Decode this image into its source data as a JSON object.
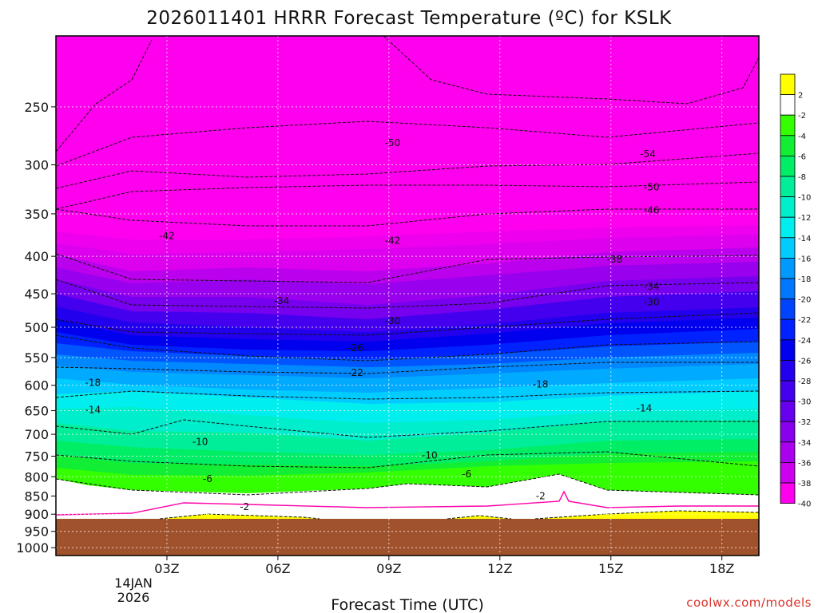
{
  "chart_data": {
    "type": "heatmap",
    "title": "2026011401 HRRR Forecast Temperature (ºC) for KSLK",
    "xlabel": "Forecast Time (UTC)",
    "ylabel": "",
    "x_ticks": [
      "03Z",
      "06Z",
      "09Z",
      "12Z",
      "15Z",
      "18Z"
    ],
    "x_hours": [
      3,
      6,
      9,
      12,
      15,
      18
    ],
    "x_range": [
      0,
      19
    ],
    "date_label": [
      "14JAN",
      "2026"
    ],
    "y_scale": "log-pressure",
    "y_ticks": [
      250,
      300,
      350,
      400,
      450,
      500,
      550,
      600,
      650,
      700,
      750,
      800,
      850,
      900,
      950,
      1000
    ],
    "y_range": [
      200,
      1025
    ],
    "ground_level_hPa": 945,
    "colorbar": {
      "labels": [
        "2",
        "-2",
        "-4",
        "-6",
        "-8",
        "-10",
        "-12",
        "-14",
        "-16",
        "-18",
        "-20",
        "-22",
        "-24",
        "-26",
        "-28",
        "-30",
        "-32",
        "-34",
        "-36",
        "-38",
        "-40"
      ],
      "colors": [
        "#ffff00",
        "#ffffff",
        "#33ff00",
        "#11ee33",
        "#00ee66",
        "#00ee99",
        "#00eecc",
        "#00eeee",
        "#00ccff",
        "#0099ff",
        "#0077ff",
        "#0044ff",
        "#0022ff",
        "#0000ee",
        "#2200ee",
        "#4400ee",
        "#6600ee",
        "#8800ee",
        "#aa00ee",
        "#cc00ee",
        "#ff00ee"
      ]
    },
    "contour_labels": [
      {
        "text": "-50",
        "hour": 9.1,
        "p": 280
      },
      {
        "text": "-54",
        "hour": 16.0,
        "p": 290
      },
      {
        "text": "-50",
        "hour": 16.1,
        "p": 322
      },
      {
        "text": "-46",
        "hour": 16.1,
        "p": 346
      },
      {
        "text": "-42",
        "hour": 3.0,
        "p": 375
      },
      {
        "text": "-42",
        "hour": 9.1,
        "p": 381
      },
      {
        "text": "-38",
        "hour": 15.1,
        "p": 404
      },
      {
        "text": "-34",
        "hour": 6.1,
        "p": 460
      },
      {
        "text": "-34",
        "hour": 16.1,
        "p": 440
      },
      {
        "text": "-30",
        "hour": 9.1,
        "p": 490
      },
      {
        "text": "-30",
        "hour": 16.1,
        "p": 462
      },
      {
        "text": "-26",
        "hour": 8.1,
        "p": 534
      },
      {
        "text": "-22",
        "hour": 8.1,
        "p": 577
      },
      {
        "text": "-18",
        "hour": 1.0,
        "p": 595
      },
      {
        "text": "-18",
        "hour": 13.1,
        "p": 598
      },
      {
        "text": "-14",
        "hour": 1.0,
        "p": 648
      },
      {
        "text": "-14",
        "hour": 15.9,
        "p": 645
      },
      {
        "text": "-10",
        "hour": 3.9,
        "p": 717
      },
      {
        "text": "-10",
        "hour": 10.1,
        "p": 748
      },
      {
        "text": "-6",
        "hour": 4.1,
        "p": 806
      },
      {
        "text": "-6",
        "hour": 11.1,
        "p": 793
      },
      {
        "text": "-2",
        "hour": 5.1,
        "p": 880
      },
      {
        "text": "-2",
        "hour": 13.1,
        "p": 850
      }
    ],
    "grid": true,
    "credit": "coolwx.com/models"
  }
}
